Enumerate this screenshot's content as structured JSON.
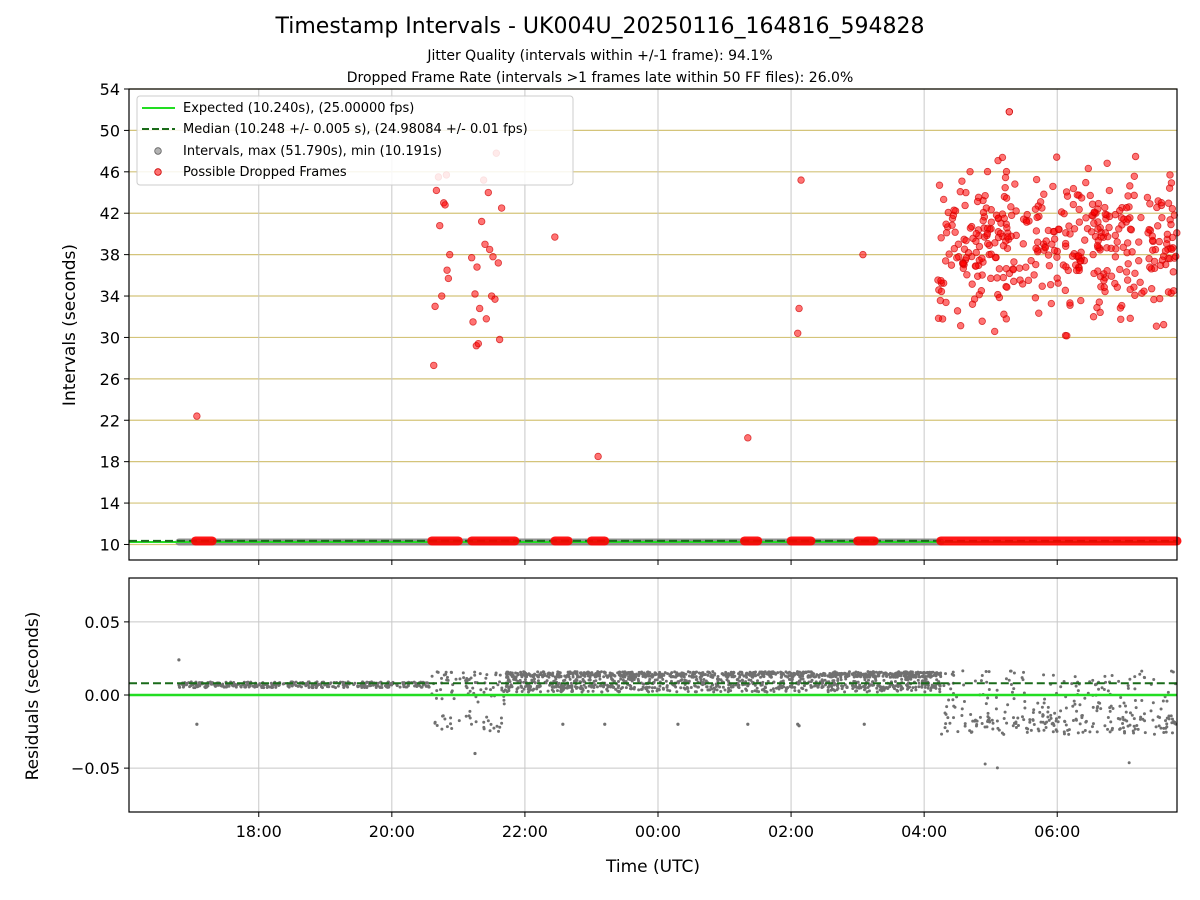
{
  "chart_data": [
    {
      "type": "scatter",
      "title": "Timestamp Intervals - UK004U_20250116_164816_594828",
      "subtitle_lines": [
        "Jitter Quality (intervals within +/-1 frame): 94.1%",
        "Dropped Frame Rate (intervals >1 frames late within 50 FF files): 26.0%"
      ],
      "ylabel": "Intervals (seconds)",
      "xlabel": "",
      "ylim": [
        8.5,
        54
      ],
      "xlim_hours": [
        16.05,
        31.8
      ],
      "yticks": [
        10,
        14,
        18,
        22,
        26,
        30,
        34,
        38,
        42,
        46,
        50,
        54
      ],
      "grid": "horizontal goldenrod lines, vertical gray lines",
      "legend_placement": "upper-left",
      "legend": [
        "Expected (10.240s), (25.00000 fps)",
        "Median (10.248 +/- 0.005 s), (24.98084 +/- 0.01 fps)",
        "Intervals, max (51.790s), min (10.191s)",
        "Possible Dropped Frames"
      ],
      "expected_value": 10.24,
      "median_value": 10.248,
      "intervals_baseline": {
        "value": 10.24,
        "x_range_hours": [
          16.8,
          28.25
        ]
      },
      "dropped_baseline_segments_hours": [
        [
          17.05,
          17.3
        ],
        [
          20.6,
          21.0
        ],
        [
          21.2,
          21.85
        ],
        [
          22.45,
          22.65
        ],
        [
          23.0,
          23.2
        ],
        [
          25.3,
          25.5
        ],
        [
          26.0,
          26.3
        ],
        [
          27.0,
          27.25
        ],
        [
          28.25,
          31.8
        ]
      ],
      "dropped_points": [
        [
          17.07,
          22.4
        ],
        [
          20.63,
          27.3
        ],
        [
          20.65,
          33.0
        ],
        [
          20.67,
          44.2
        ],
        [
          20.7,
          45.5
        ],
        [
          20.72,
          40.8
        ],
        [
          20.75,
          34.0
        ],
        [
          20.78,
          43.0
        ],
        [
          20.8,
          42.8
        ],
        [
          20.82,
          45.7
        ],
        [
          20.83,
          36.5
        ],
        [
          20.85,
          35.7
        ],
        [
          20.87,
          38.0
        ],
        [
          21.2,
          37.7
        ],
        [
          21.22,
          31.5
        ],
        [
          21.25,
          34.2
        ],
        [
          21.27,
          29.2
        ],
        [
          21.28,
          36.8
        ],
        [
          21.3,
          29.4
        ],
        [
          21.32,
          32.8
        ],
        [
          21.35,
          41.2
        ],
        [
          21.38,
          45.2
        ],
        [
          21.4,
          39.0
        ],
        [
          21.42,
          31.8
        ],
        [
          21.45,
          44.0
        ],
        [
          21.47,
          38.5
        ],
        [
          21.5,
          34.0
        ],
        [
          21.52,
          37.8
        ],
        [
          21.55,
          33.7
        ],
        [
          21.57,
          47.8
        ],
        [
          21.6,
          37.2
        ],
        [
          21.62,
          29.8
        ],
        [
          21.65,
          42.5
        ],
        [
          22.45,
          39.7
        ],
        [
          23.1,
          18.5
        ],
        [
          25.35,
          20.3
        ],
        [
          26.1,
          30.4
        ],
        [
          26.12,
          32.8
        ],
        [
          26.15,
          45.2
        ],
        [
          27.08,
          38.0
        ]
      ],
      "cluster_region": {
        "x_range_hours": [
          28.2,
          31.8
        ],
        "y_range": [
          29.5,
          52
        ],
        "count": 400,
        "note": "dense scatter of possible dropped frames"
      }
    },
    {
      "type": "scatter",
      "ylabel": "Residuals (seconds)",
      "xlabel": "Time (UTC)",
      "ylim": [
        -0.08,
        0.08
      ],
      "yticks": [
        0.05,
        0.0,
        -0.05
      ],
      "ytick_labels": [
        "0.05",
        "0.00",
        "−0.05"
      ],
      "xticks_hours": [
        18,
        20,
        22,
        24,
        26,
        28,
        30
      ],
      "xtick_labels": [
        "18:00",
        "20:00",
        "22:00",
        "00:00",
        "02:00",
        "04:00",
        "06:00"
      ],
      "expected_residual": 0.0,
      "median_residual": 0.008,
      "segments": [
        {
          "x_range_hours": [
            16.8,
            20.6
          ],
          "center": 0.007,
          "spread": 0.002
        },
        {
          "x_range_hours": [
            20.6,
            21.2
          ],
          "center": 0.006,
          "spread": 0.01,
          "low": -0.02
        },
        {
          "x_range_hours": [
            21.2,
            21.7
          ],
          "center": 0.005,
          "spread": 0.012,
          "low": -0.04
        },
        {
          "x_range_hours": [
            21.7,
            28.25
          ],
          "center": 0.008,
          "spread": 0.009,
          "band": true
        },
        {
          "x_range_hours": [
            28.25,
            31.8
          ],
          "center": -0.005,
          "spread": 0.022,
          "low": -0.05
        }
      ],
      "outliers": [
        [
          16.8,
          0.024
        ],
        [
          17.07,
          -0.02
        ],
        [
          22.57,
          -0.02
        ],
        [
          23.2,
          -0.02
        ],
        [
          24.3,
          -0.02
        ],
        [
          25.35,
          -0.02
        ],
        [
          26.1,
          -0.02
        ],
        [
          26.12,
          -0.021
        ],
        [
          27.1,
          -0.02
        ],
        [
          21.25,
          -0.04
        ]
      ]
    }
  ]
}
